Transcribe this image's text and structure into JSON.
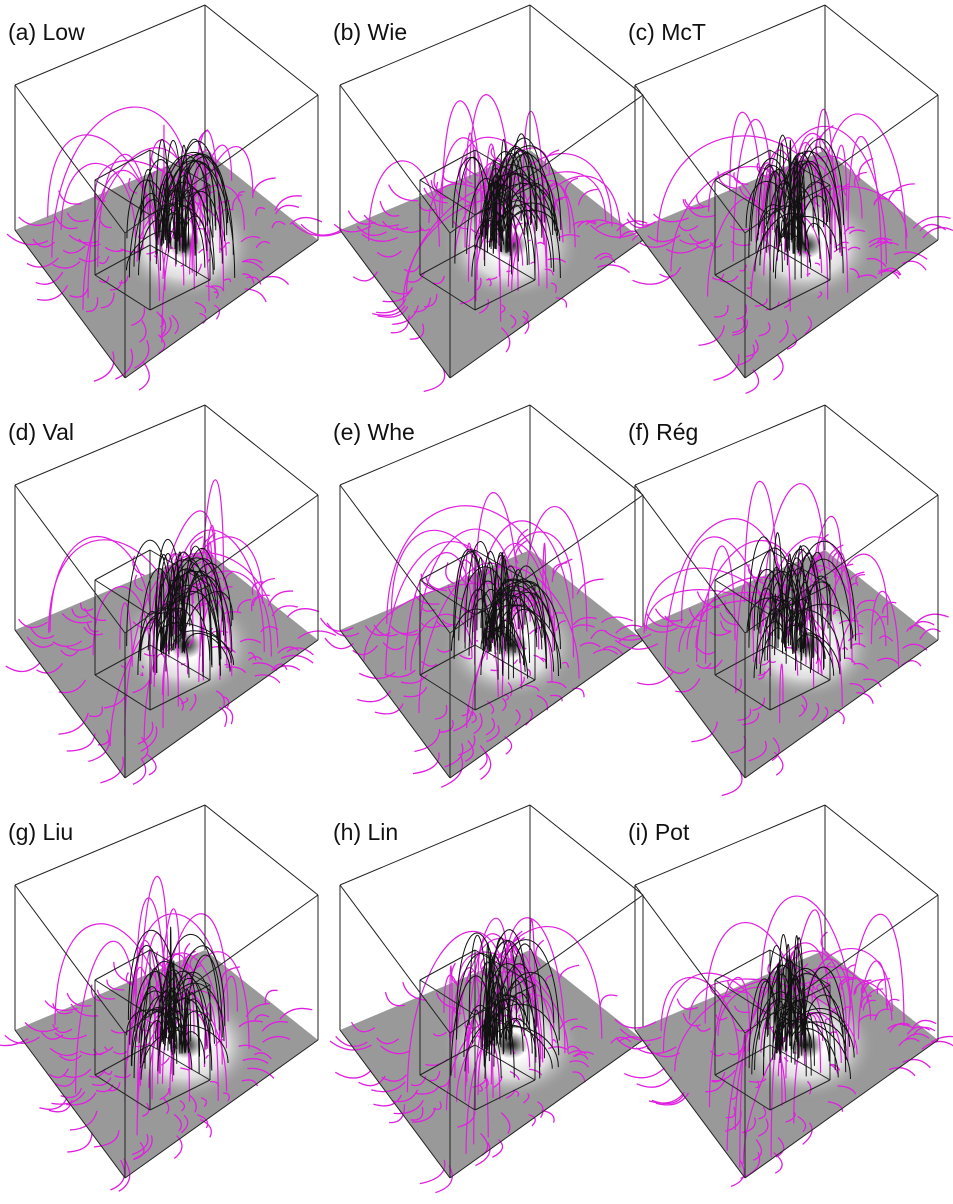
{
  "panels": [
    {
      "label": "(a) Low"
    },
    {
      "label": "(b) Wie"
    },
    {
      "label": "(c) McT"
    },
    {
      "label": "(d) Val"
    },
    {
      "label": "(e) Whe"
    },
    {
      "label": "(f) Rég"
    },
    {
      "label": "(g) Liu"
    },
    {
      "label": "(h) Lin"
    },
    {
      "label": "(i) Pot"
    }
  ]
}
